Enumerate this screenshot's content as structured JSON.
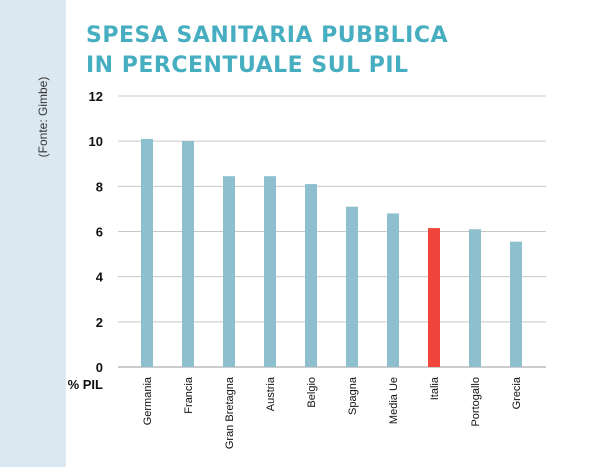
{
  "chart_data": {
    "type": "bar",
    "title_lines": [
      "SPESA SANITARIA PUBBLICA",
      "IN PERCENTUALE SUL PIL"
    ],
    "source": "(Fonte: Gimbe)",
    "xlabel": "% PIL",
    "ylabel": "",
    "ylim": [
      0,
      12
    ],
    "yticks": [
      0,
      2,
      4,
      6,
      8,
      10,
      12
    ],
    "grid": true,
    "categories": [
      "Germania",
      "Francia",
      "Gran Bretagna",
      "Austria",
      "Belgio",
      "Spagna",
      "Media Ue",
      "Italia",
      "Portogallo",
      "Grecia"
    ],
    "values": [
      10.1,
      10.0,
      8.45,
      8.45,
      8.1,
      7.1,
      6.8,
      6.15,
      6.1,
      5.55
    ],
    "highlight_category": "Italia",
    "colors": {
      "bar": "#8dbfcf",
      "highlight": "#f0453a",
      "title": "#46aec0",
      "side_band": "#dbe8f1"
    }
  }
}
